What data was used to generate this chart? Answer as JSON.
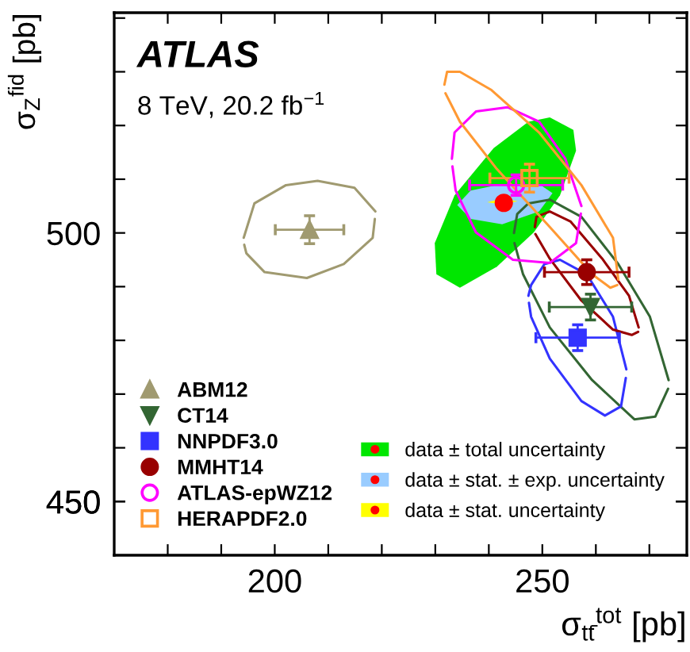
{
  "chart_data": {
    "type": "scatter",
    "xlabel": "σ$_{tt̄}$$^{tot}$ [pb]",
    "ylabel": "σ$_{Z}$$^{fid}$ [pb]",
    "annotations": [
      "ATLAS",
      "8 TeV, 20.2 fb$^{−1}$"
    ],
    "xlim": [
      170,
      277
    ],
    "ylim": [
      440,
      541
    ],
    "xticks": [
      {
        "value": 180,
        "label": null
      },
      {
        "value": 190,
        "label": null
      },
      200,
      {
        "value": 210,
        "label": null
      },
      {
        "value": 220,
        "label": null
      },
      {
        "value": 230,
        "label": null
      },
      {
        "value": 240,
        "label": null
      },
      250,
      {
        "value": 260,
        "label": null
      },
      {
        "value": 270,
        "label": null
      }
    ],
    "yticks": [
      {
        "value": 450,
        "label": null
      },
      450,
      {
        "value": 460,
        "label": null
      },
      {
        "value": 470,
        "label": null
      },
      {
        "value": 480,
        "label": null
      },
      {
        "value": 490,
        "label": null
      },
      500,
      {
        "value": 510,
        "label": null
      },
      {
        "value": 520,
        "label": null
      },
      {
        "value": 530,
        "label": null
      },
      {
        "value": 540,
        "label": null
      }
    ],
    "grid": false,
    "legend": "bottom left",
    "series": [
      {
        "type": "area",
        "name": "data ± total uncertainty",
        "color": "#00e600",
        "x": [
          251.4,
          255.8,
          256.3,
          253.3,
          248.4,
          241.5,
          234.6,
          230.2,
          229.9,
          233.6,
          240.9,
          247.4
        ],
        "values": [
          521.5,
          519.2,
          515.3,
          507.0,
          500.1,
          493.7,
          489.8,
          492.3,
          498.1,
          507.0,
          515.8,
          520.7
        ]
      },
      {
        "type": "area",
        "name": "data ± stat. ± exp. uncertainty",
        "color": "#99ccff",
        "x": [
          234.1,
          236.6,
          242.5,
          249.4,
          251.9,
          249.4,
          242.5,
          236.6
        ],
        "values": [
          505.2,
          507.9,
          509.1,
          509.1,
          507.4,
          504.0,
          501.6,
          502.6
        ]
      },
      {
        "type": "area",
        "name": "data ± stat. uncertainty",
        "color": "#ffff00",
        "x": [
          239.7,
          242.5,
          245.4,
          242.5
        ],
        "values": [
          505.7,
          506.4,
          505.9,
          505.3
        ]
      },
      {
        "type": "line",
        "color": "#a09a70",
        "x": [
          194.2,
          196.2,
          202.1,
          208.0,
          214.9,
          218.8
        ],
        "values": [
          499.1,
          505.5,
          508.9,
          509.7,
          508.4,
          504.0
        ]
      },
      {
        "type": "line",
        "color": "#a09a70",
        "x": [
          194.3,
          194.7,
          198.1,
          206.0,
          212.9,
          218.3,
          218.7
        ],
        "values": [
          497.8,
          496.2,
          492.7,
          491.6,
          494.2,
          499.1,
          502.6
        ]
      },
      {
        "type": "line",
        "color": "#336633",
        "x": [
          244.7,
          245.3,
          247.4,
          251.4,
          257.3,
          264.2,
          270.1,
          273.6
        ],
        "values": [
          500.0,
          503.5,
          505.5,
          506.2,
          503.0,
          494.2,
          484.4,
          472.6
        ]
      },
      {
        "type": "line",
        "color": "#336633",
        "x": [
          244.8,
          246.4,
          251.4,
          259.3,
          267.2,
          271.1,
          273.5
        ],
        "values": [
          498.1,
          492.3,
          482.4,
          472.6,
          465.3,
          465.8,
          471.0
        ]
      },
      {
        "type": "line",
        "color": "#3333ff",
        "x": [
          247.4,
          247.9,
          250.4,
          253.3,
          258.3,
          263.2,
          265.7
        ],
        "values": [
          488.3,
          490.3,
          494.2,
          495.0,
          492.3,
          484.4,
          474.6
        ]
      },
      {
        "type": "line",
        "color": "#3333ff",
        "x": [
          247.5,
          247.9,
          251.4,
          257.3,
          261.7,
          264.7,
          265.6
        ],
        "values": [
          487.0,
          484.4,
          476.6,
          468.7,
          466.0,
          467.7,
          473.0
        ]
      },
      {
        "type": "line",
        "color": "#990000",
        "x": [
          248.6,
          248.9,
          251.4,
          255.3,
          261.2,
          266.2,
          268.0
        ],
        "values": [
          501.1,
          503.0,
          504.0,
          502.1,
          495.2,
          488.3,
          482.4
        ]
      },
      {
        "type": "line",
        "color": "#990000",
        "x": [
          248.7,
          251.4,
          257.3,
          263.2,
          266.7,
          267.9
        ],
        "values": [
          499.8,
          495.2,
          487.4,
          482.0,
          481.0,
          481.6
        ]
      },
      {
        "type": "line",
        "color": "#ff00ff",
        "x": [
          233.1,
          233.6,
          237.6,
          243.5,
          249.4,
          254.3,
          257.3
        ],
        "values": [
          513.8,
          518.7,
          522.6,
          523.4,
          520.7,
          513.8,
          505.0
        ]
      },
      {
        "type": "line",
        "color": "#ff00ff",
        "x": [
          233.2,
          233.8,
          237.6,
          244.5,
          251.4,
          256.3,
          257.2
        ],
        "values": [
          512.4,
          507.9,
          500.1,
          495.0,
          494.4,
          498.1,
          503.6
        ]
      },
      {
        "type": "line",
        "color": "#ff9933",
        "x": [
          231.7,
          232.2,
          234.6,
          240.5,
          249.4,
          257.3,
          263.2,
          264.2
        ],
        "values": [
          527.6,
          530.0,
          530.0,
          526.6,
          518.7,
          508.9,
          499.1,
          491.3
        ]
      },
      {
        "type": "line",
        "color": "#ff9933",
        "x": [
          231.9,
          234.6,
          241.5,
          251.4,
          259.3,
          262.7,
          264.0
        ],
        "values": [
          526.0,
          520.7,
          511.9,
          501.1,
          492.3,
          489.8,
          490.3
        ]
      },
      {
        "name": "ABM12",
        "color": "#a09a70",
        "marker": "triangle",
        "x": [
          206.5
        ],
        "values": [
          500.6
        ],
        "errors": [
          2.6
        ],
        "xerrors": [
          6.4
        ]
      },
      {
        "name": "CT14",
        "color": "#336633",
        "marker": "triangle_down",
        "x": [
          259.0
        ],
        "values": [
          486.2
        ],
        "errors": [
          2.4
        ],
        "xerrors": [
          7.7
        ]
      },
      {
        "name": "NNPDF3.0",
        "color": "#3333ff",
        "marker": "square",
        "x": [
          256.6
        ],
        "values": [
          480.5
        ],
        "errors": [
          2.4
        ],
        "xerrors": [
          7.8
        ]
      },
      {
        "name": "MMHT14",
        "color": "#990000",
        "marker": "circle",
        "x": [
          258.3
        ],
        "values": [
          492.7
        ],
        "errors": [
          2.3
        ],
        "xerrors": [
          7.9
        ]
      },
      {
        "name": "ATLAS-epWZ12",
        "color": "#ff00ff",
        "marker": "circle_open",
        "x": [
          245.1
        ],
        "values": [
          508.9
        ],
        "errors": [
          1.9
        ],
        "xerrors": [
          8.7
        ]
      },
      {
        "name": "HERAPDF2.0",
        "color": "#ff9933",
        "marker": "square_open",
        "x": [
          247.6
        ],
        "values": [
          510.2
        ],
        "errors": [
          2.6
        ],
        "xerrors": [
          7.4
        ]
      },
      {
        "color": "#ff0000",
        "marker": "circle",
        "x": [
          242.8
        ],
        "values": [
          505.6
        ]
      }
    ]
  }
}
